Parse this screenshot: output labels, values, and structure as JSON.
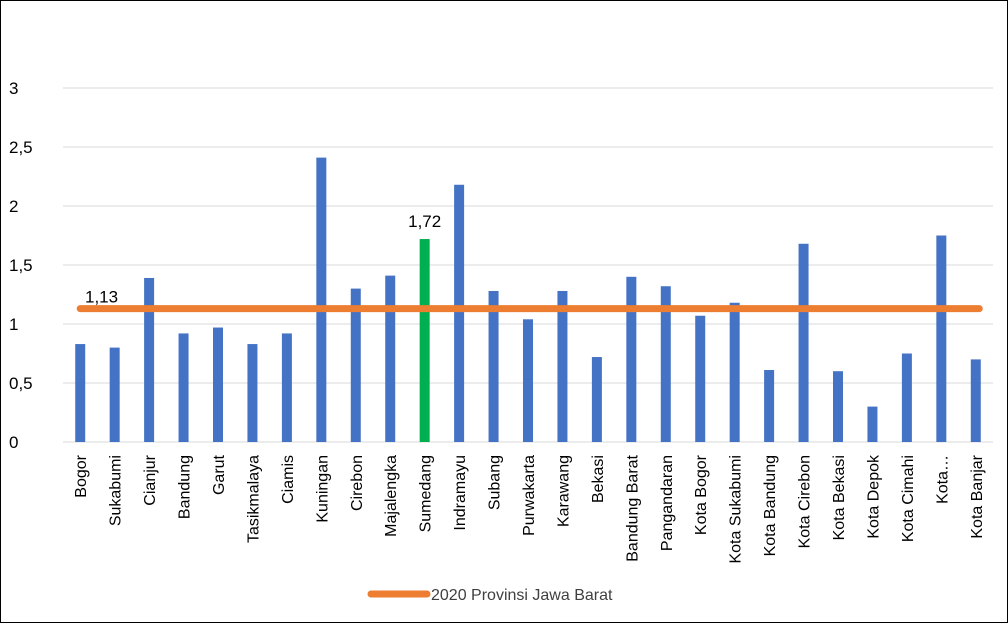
{
  "chart_data": {
    "type": "bar",
    "categories": [
      "Bogor",
      "Sukabumi",
      "Cianjur",
      "Bandung",
      "Garut",
      "Tasikmalaya",
      "Ciamis",
      "Kuningan",
      "Cirebon",
      "Majalengka",
      "Sumedang",
      "Indramayu",
      "Subang",
      "Purwakarta",
      "Karawang",
      "Bekasi",
      "Bandung Barat",
      "Pangandaran",
      "Kota Bogor",
      "Kota Sukabumi",
      "Kota Bandung",
      "Kota Cirebon",
      "Kota Bekasi",
      "Kota Depok",
      "Kota Cimahi",
      "Kota…",
      "Kota Banjar"
    ],
    "values": [
      0.83,
      0.8,
      1.39,
      0.92,
      0.97,
      0.83,
      0.92,
      2.41,
      1.3,
      1.41,
      1.72,
      2.18,
      1.28,
      1.04,
      1.28,
      0.72,
      1.4,
      1.32,
      1.07,
      1.18,
      0.61,
      1.68,
      0.6,
      0.3,
      0.75,
      1.75,
      0.7
    ],
    "highlight_index": 10,
    "bar_color": "#4472C4",
    "highlight_color": "#00B050",
    "y_ticks": [
      "0",
      "0,5",
      "1",
      "1,5",
      "2",
      "2,5",
      "3"
    ],
    "ylim": [
      0,
      3.2
    ],
    "grid": true,
    "reference_line": {
      "name": "2020 Provinsi Jawa Barat",
      "value": 1.13,
      "label": "1,13",
      "color": "#ED7D31"
    },
    "data_labels": [
      {
        "index": 10,
        "text": "1,72"
      }
    ],
    "legend_position": "bottom",
    "title": "",
    "xlabel": "",
    "ylabel": ""
  }
}
